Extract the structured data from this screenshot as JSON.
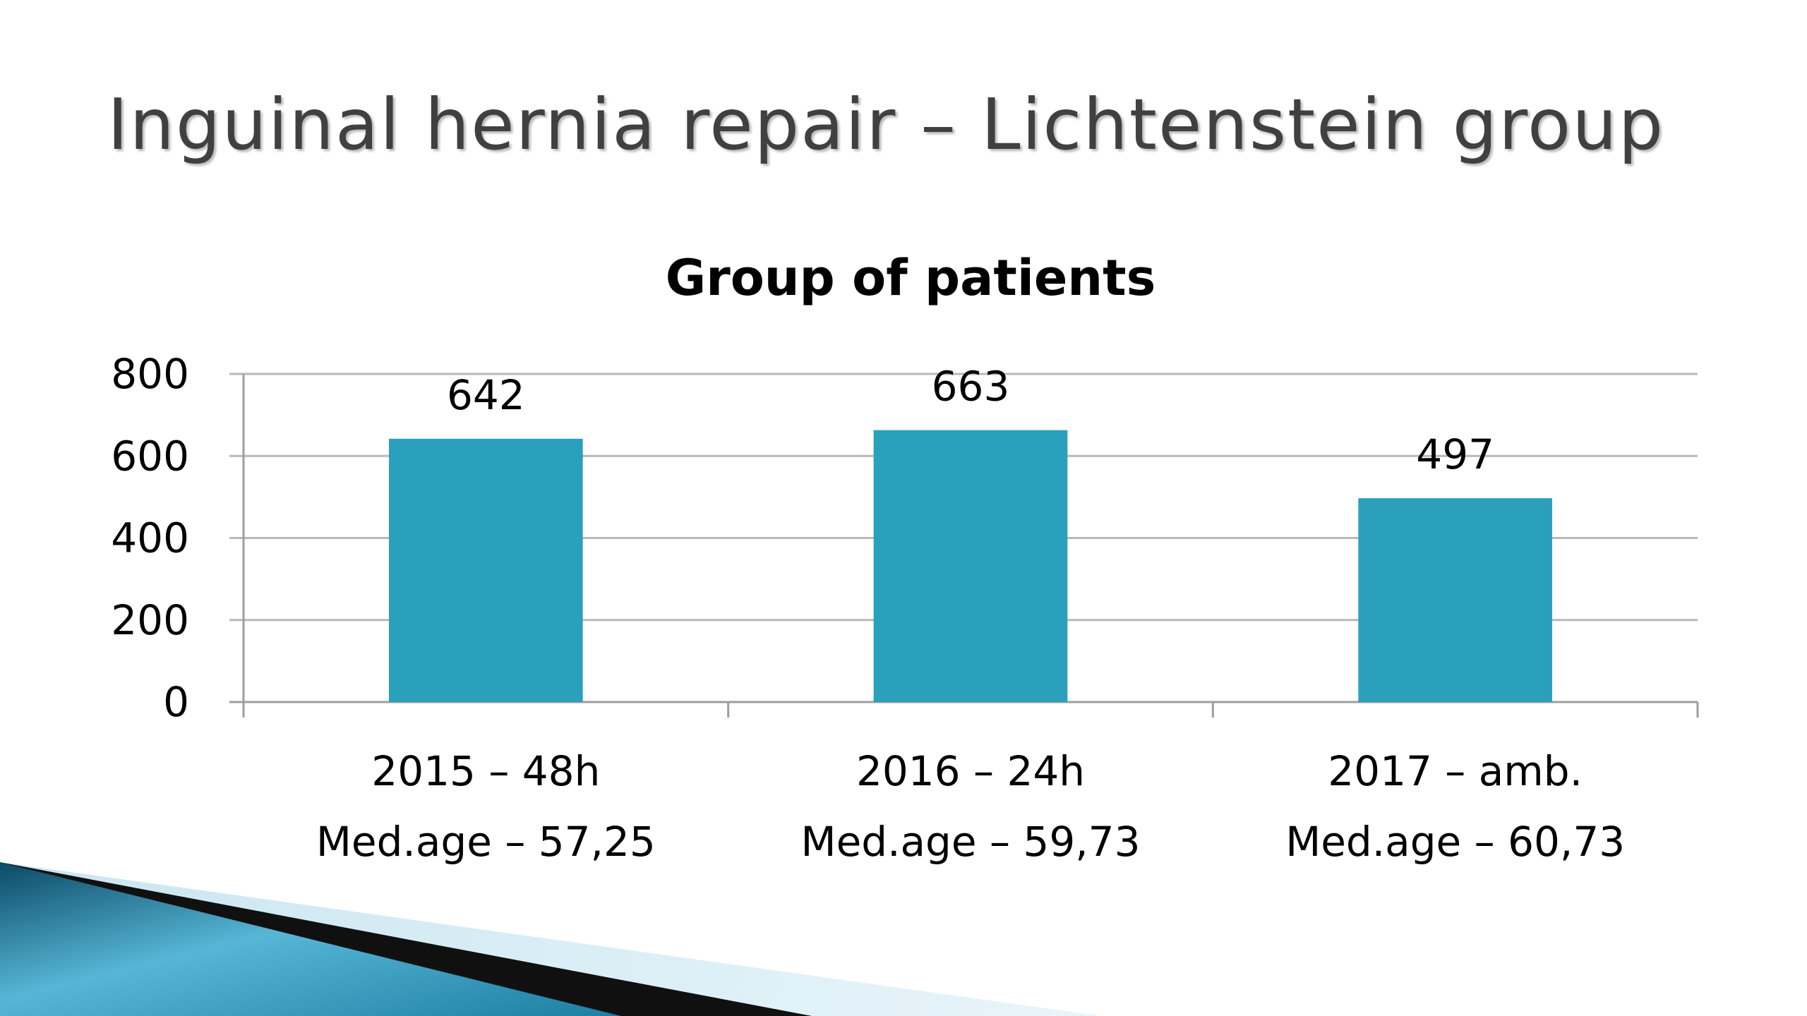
{
  "slide": {
    "title": "Inguinal hernia repair – Lichtenstein group"
  },
  "colors": {
    "bar": "#2ba0bd",
    "grid": "#b8b8b8",
    "axis": "#9e9e9e",
    "text": "#000000",
    "title": "#404040"
  },
  "chart_data": {
    "type": "bar",
    "title": "Group of patients",
    "categories": [
      [
        "2015 – 48h",
        "Med.age – 57,25"
      ],
      [
        "2016 – 24h",
        "Med.age – 59,73"
      ],
      [
        "2017 – amb.",
        "Med.age – 60,73"
      ]
    ],
    "values": [
      642,
      663,
      497
    ],
    "data_labels": [
      "642",
      "663",
      "497"
    ],
    "yticks": [
      "0",
      "200",
      "400",
      "600",
      "800"
    ],
    "ylim": [
      0,
      800
    ],
    "grid": true,
    "legend": "none"
  }
}
